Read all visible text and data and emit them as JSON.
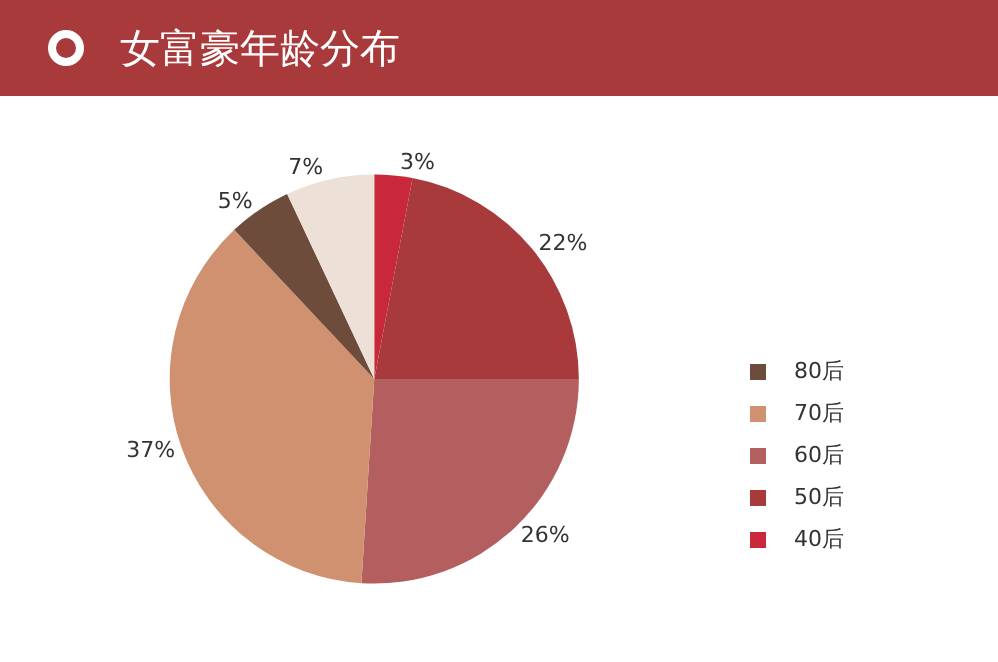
{
  "chart_data": {
    "type": "pie",
    "title": "女富豪年龄分布",
    "categories": [
      "40后",
      "50后",
      "60后",
      "70后",
      "80后",
      null
    ],
    "values": [
      3,
      22,
      26,
      37,
      5,
      7
    ],
    "value_labels": [
      "3%",
      "22%",
      "26%",
      "37%",
      "5%",
      "7%"
    ],
    "colors": [
      "#c8283a",
      "#a83a3c",
      "#b45f5f",
      "#cf916f",
      "#6e4c3c",
      "#ede0d6"
    ],
    "legend": "right"
  }
}
